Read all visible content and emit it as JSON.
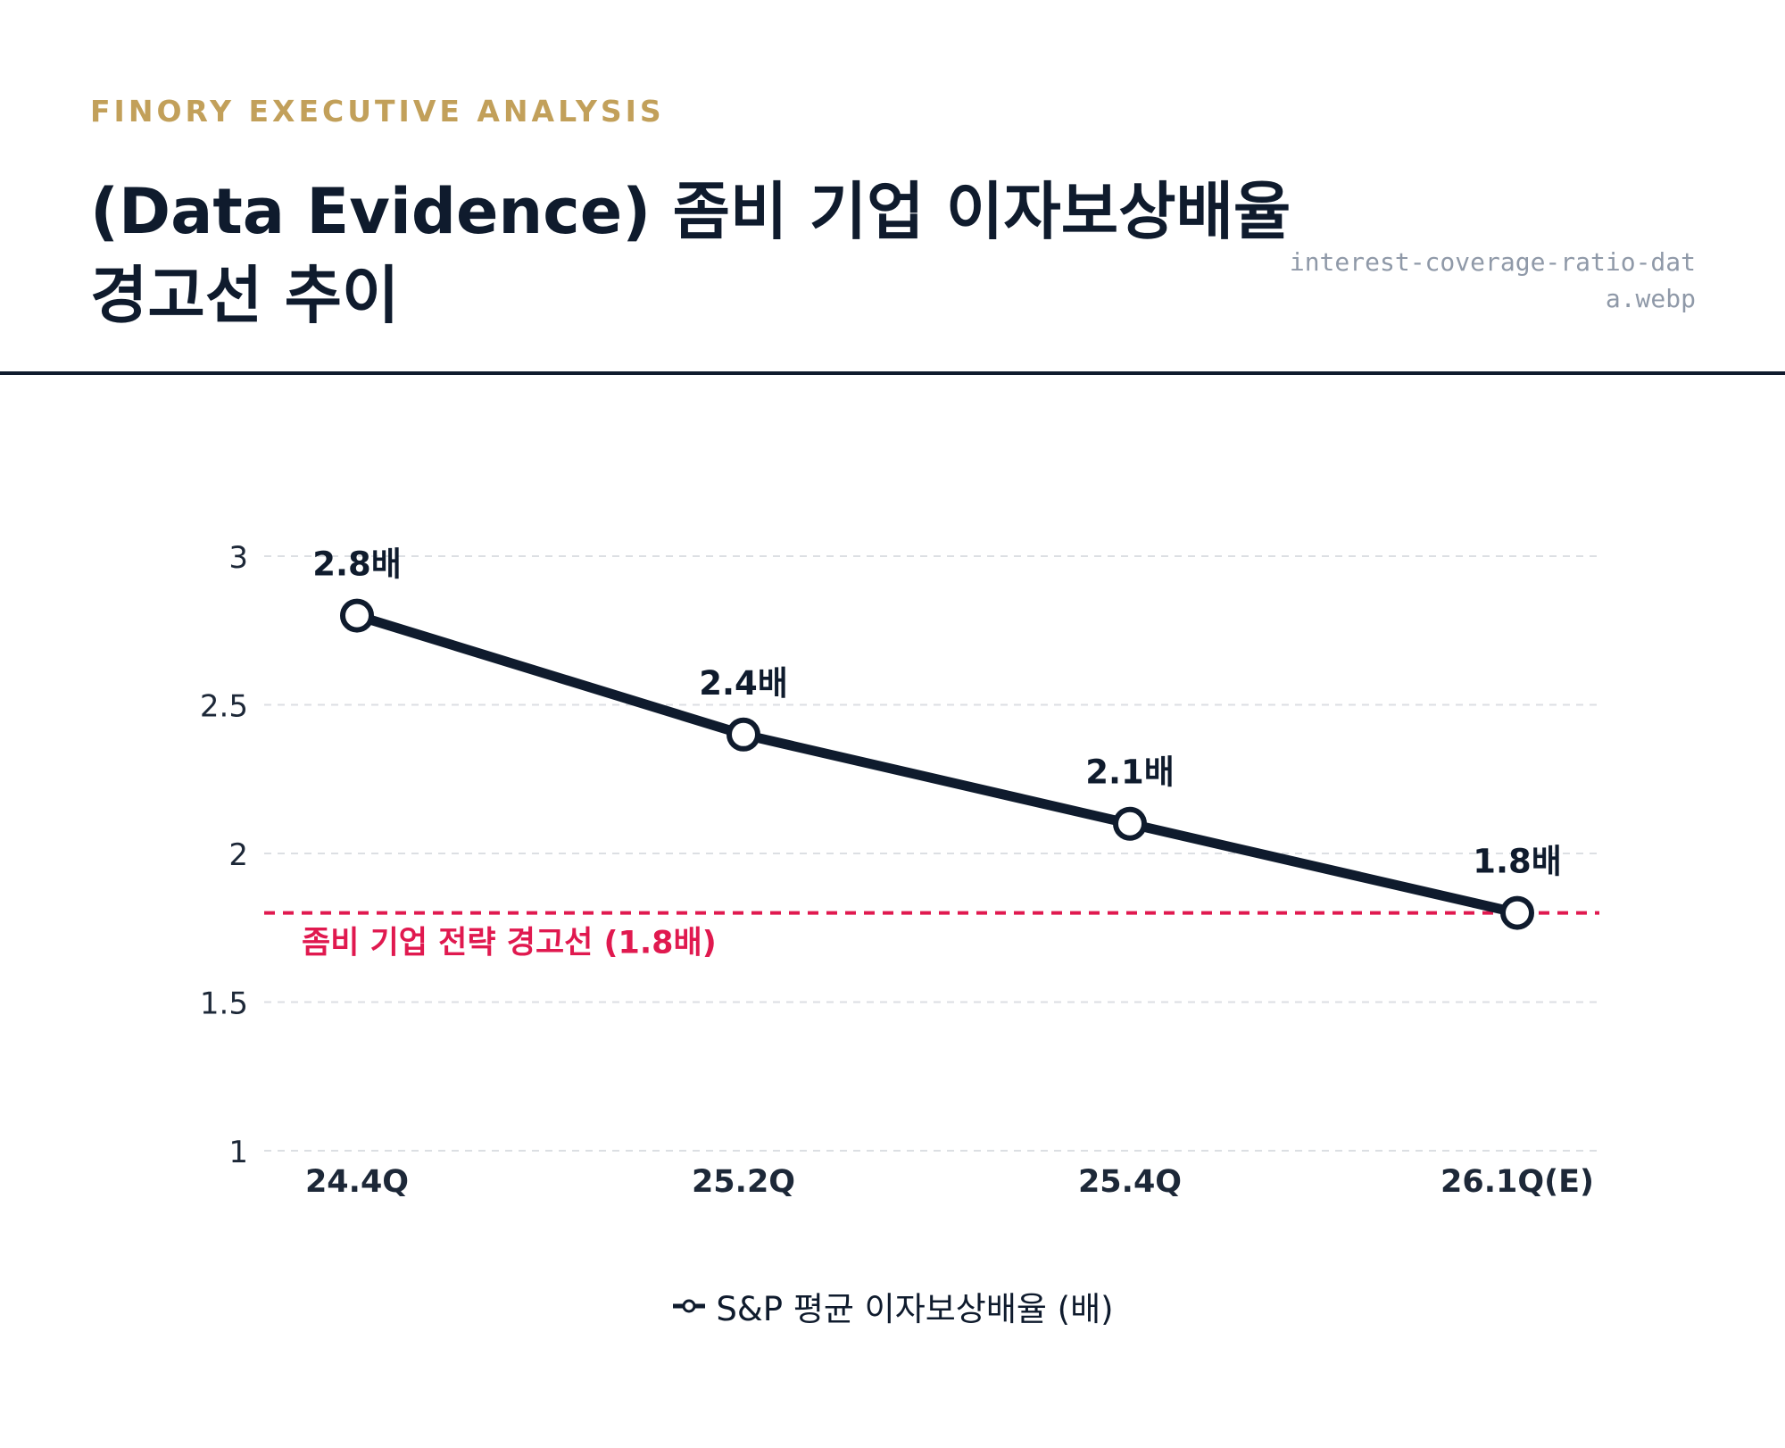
{
  "header": {
    "kicker": "FINORY EXECUTIVE ANALYSIS",
    "title": "(Data Evidence) 좀비 기업 이자보상배율 경고선 추이",
    "filename": "interest-coverage-ratio-data.webp"
  },
  "colors": {
    "accent_gold": "#c2a05a",
    "navy": "#0f1b2d",
    "warning_red": "#e0194f",
    "grid": "#dcdfe3"
  },
  "chart_data": {
    "type": "line",
    "categories": [
      "24.4Q",
      "25.2Q",
      "25.4Q",
      "26.1Q(E)"
    ],
    "series": [
      {
        "name": "S&P 평균 이자보상배율 (배)",
        "values": [
          2.8,
          2.4,
          2.1,
          1.8
        ],
        "data_labels": [
          "2.8배",
          "2.4배",
          "2.1배",
          "1.8배"
        ],
        "marker": "hollow-circle"
      }
    ],
    "ylim": [
      1,
      3
    ],
    "yticks": [
      1,
      1.5,
      2,
      2.5,
      3
    ],
    "ytick_labels": [
      "1",
      "1.5",
      "2",
      "2.5",
      "3"
    ],
    "grid": "horizontal-dashed",
    "reference_line": {
      "value": 1.8,
      "label": "좀비 기업 전략 경고선 (1.8배)",
      "style": "dashed"
    },
    "legend_position": "bottom-center"
  }
}
